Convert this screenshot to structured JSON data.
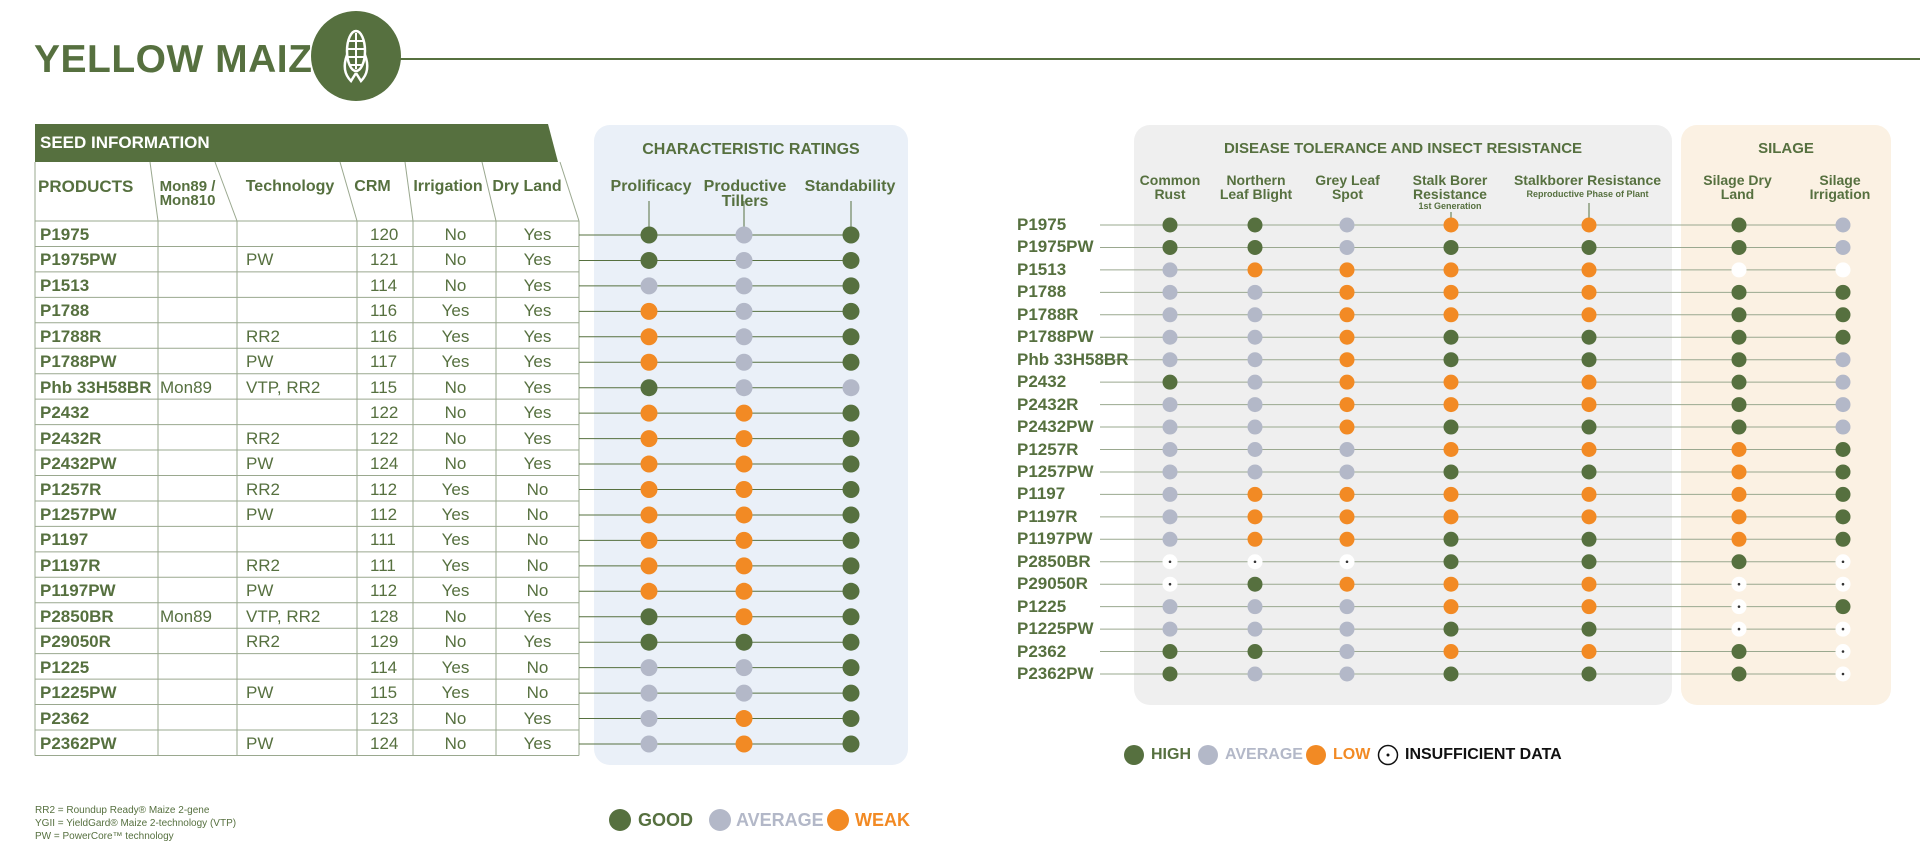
{
  "page": {
    "title": "YELLOW MAIZE",
    "logo_icon": "maize-cob-icon"
  },
  "colors": {
    "green": "#56703f",
    "grey": "#b3b8c8",
    "orange": "#f28a24",
    "char_panel": "#eaf0f8",
    "disease_panel": "#efefef",
    "silage_panel": "#fbf1e3"
  },
  "seed_info": {
    "banner": "SEED INFORMATION",
    "headers": {
      "products": "PRODUCTS",
      "mon_line1": "Mon89 /",
      "mon_line2": "Mon810",
      "technology": "Technology",
      "crm": "CRM",
      "irrigation": "Irrigation",
      "dry_land": "Dry Land"
    },
    "rows": [
      {
        "product": "P1975",
        "mon": "",
        "tech": "",
        "crm": "120",
        "irrigation": "No",
        "dry": "Yes"
      },
      {
        "product": "P1975PW",
        "mon": "",
        "tech": "PW",
        "crm": "121",
        "irrigation": "No",
        "dry": "Yes"
      },
      {
        "product": "P1513",
        "mon": "",
        "tech": "",
        "crm": "114",
        "irrigation": "No",
        "dry": "Yes"
      },
      {
        "product": "P1788",
        "mon": "",
        "tech": "",
        "crm": "116",
        "irrigation": "Yes",
        "dry": "Yes"
      },
      {
        "product": "P1788R",
        "mon": "",
        "tech": "RR2",
        "crm": "116",
        "irrigation": "Yes",
        "dry": "Yes"
      },
      {
        "product": "P1788PW",
        "mon": "",
        "tech": "PW",
        "crm": "117",
        "irrigation": "Yes",
        "dry": "Yes"
      },
      {
        "product": "Phb 33H58BR",
        "mon": "Mon89",
        "tech": "VTP, RR2",
        "crm": "115",
        "irrigation": "No",
        "dry": "Yes"
      },
      {
        "product": "P2432",
        "mon": "",
        "tech": "",
        "crm": "122",
        "irrigation": "No",
        "dry": "Yes"
      },
      {
        "product": "P2432R",
        "mon": "",
        "tech": "RR2",
        "crm": "122",
        "irrigation": "No",
        "dry": "Yes"
      },
      {
        "product": "P2432PW",
        "mon": "",
        "tech": "PW",
        "crm": "124",
        "irrigation": "No",
        "dry": "Yes"
      },
      {
        "product": "P1257R",
        "mon": "",
        "tech": "RR2",
        "crm": "112",
        "irrigation": "Yes",
        "dry": "No"
      },
      {
        "product": "P1257PW",
        "mon": "",
        "tech": "PW",
        "crm": "112",
        "irrigation": "Yes",
        "dry": "No"
      },
      {
        "product": "P1197",
        "mon": "",
        "tech": "",
        "crm": "111",
        "irrigation": "Yes",
        "dry": "No"
      },
      {
        "product": "P1197R",
        "mon": "",
        "tech": "RR2",
        "crm": "111",
        "irrigation": "Yes",
        "dry": "No"
      },
      {
        "product": "P1197PW",
        "mon": "",
        "tech": "PW",
        "crm": "112",
        "irrigation": "Yes",
        "dry": "No"
      },
      {
        "product": "P2850BR",
        "mon": "Mon89",
        "tech": "VTP, RR2",
        "crm": "128",
        "irrigation": "No",
        "dry": "Yes"
      },
      {
        "product": "P29050R",
        "mon": "",
        "tech": "RR2",
        "crm": "129",
        "irrigation": "No",
        "dry": "Yes"
      },
      {
        "product": "P1225",
        "mon": "",
        "tech": "",
        "crm": "114",
        "irrigation": "Yes",
        "dry": "No"
      },
      {
        "product": "P1225PW",
        "mon": "",
        "tech": "PW",
        "crm": "115",
        "irrigation": "Yes",
        "dry": "No"
      },
      {
        "product": "P2362",
        "mon": "",
        "tech": "",
        "crm": "123",
        "irrigation": "No",
        "dry": "Yes"
      },
      {
        "product": "P2362PW",
        "mon": "",
        "tech": "PW",
        "crm": "124",
        "irrigation": "No",
        "dry": "Yes"
      }
    ]
  },
  "char_ratings": {
    "title": "CHARACTERISTIC RATINGS",
    "headers": {
      "prolificacy": "Prolificacy",
      "tillers_line1": "Productive",
      "tillers_line2": "Tillers",
      "standability": "Standability"
    },
    "rows": [
      [
        "G",
        "A",
        "G"
      ],
      [
        "G",
        "A",
        "G"
      ],
      [
        "A",
        "A",
        "G"
      ],
      [
        "W",
        "A",
        "G"
      ],
      [
        "W",
        "A",
        "G"
      ],
      [
        "W",
        "A",
        "G"
      ],
      [
        "G",
        "A",
        "A"
      ],
      [
        "W",
        "W",
        "G"
      ],
      [
        "W",
        "W",
        "G"
      ],
      [
        "W",
        "W",
        "G"
      ],
      [
        "W",
        "W",
        "G"
      ],
      [
        "W",
        "W",
        "G"
      ],
      [
        "W",
        "W",
        "G"
      ],
      [
        "W",
        "W",
        "G"
      ],
      [
        "W",
        "W",
        "G"
      ],
      [
        "G",
        "W",
        "G"
      ],
      [
        "G",
        "G",
        "G"
      ],
      [
        "A",
        "A",
        "G"
      ],
      [
        "A",
        "A",
        "G"
      ],
      [
        "A",
        "W",
        "G"
      ],
      [
        "A",
        "W",
        "G"
      ]
    ],
    "legend": {
      "good": "GOOD",
      "average": "AVERAGE",
      "weak": "WEAK"
    }
  },
  "disease": {
    "title": "DISEASE TOLERANCE AND INSECT RESISTANCE",
    "headers": {
      "common_rust_1": "Common",
      "common_rust_2": "Rust",
      "nlb_1": "Northern",
      "nlb_2": "Leaf Blight",
      "gls_1": "Grey Leaf",
      "gls_2": "Spot",
      "sbr_1": "Stalk Borer",
      "sbr_2": "Resistance",
      "sbr_3": "1st Generation",
      "sbr2_1": "Stalkborer Resistance",
      "sbr2_2": "Reproductive Phase of Plant"
    },
    "silage_title": "SILAGE",
    "silage_headers": {
      "dry_1": "Silage Dry",
      "dry_2": "Land",
      "irr_1": "Silage",
      "irr_2": "Irrigation"
    },
    "rows": [
      {
        "product": "P1975",
        "r": [
          "H",
          "H",
          "A",
          "L",
          "L",
          "H",
          "A"
        ]
      },
      {
        "product": "P1975PW",
        "r": [
          "H",
          "H",
          "A",
          "H",
          "H",
          "H",
          "A"
        ]
      },
      {
        "product": "P1513",
        "r": [
          "A",
          "L",
          "L",
          "L",
          "L",
          "B",
          "B"
        ]
      },
      {
        "product": "P1788",
        "r": [
          "A",
          "A",
          "L",
          "L",
          "L",
          "H",
          "H"
        ]
      },
      {
        "product": "P1788R",
        "r": [
          "A",
          "A",
          "L",
          "L",
          "L",
          "H",
          "H"
        ]
      },
      {
        "product": "P1788PW",
        "r": [
          "A",
          "A",
          "L",
          "H",
          "H",
          "H",
          "H"
        ]
      },
      {
        "product": "Phb 33H58BR",
        "r": [
          "A",
          "A",
          "L",
          "H",
          "H",
          "H",
          "A"
        ]
      },
      {
        "product": "P2432",
        "r": [
          "H",
          "A",
          "L",
          "L",
          "L",
          "H",
          "A"
        ]
      },
      {
        "product": "P2432R",
        "r": [
          "A",
          "A",
          "L",
          "L",
          "L",
          "H",
          "A"
        ]
      },
      {
        "product": "P2432PW",
        "r": [
          "A",
          "A",
          "L",
          "H",
          "H",
          "H",
          "A"
        ]
      },
      {
        "product": "P1257R",
        "r": [
          "A",
          "A",
          "A",
          "L",
          "L",
          "L",
          "H"
        ]
      },
      {
        "product": "P1257PW",
        "r": [
          "A",
          "A",
          "A",
          "H",
          "H",
          "L",
          "H"
        ]
      },
      {
        "product": "P1197",
        "r": [
          "A",
          "L",
          "L",
          "L",
          "L",
          "L",
          "H"
        ]
      },
      {
        "product": "P1197R",
        "r": [
          "A",
          "L",
          "L",
          "L",
          "L",
          "L",
          "H"
        ]
      },
      {
        "product": "P1197PW",
        "r": [
          "A",
          "L",
          "L",
          "H",
          "H",
          "L",
          "H"
        ]
      },
      {
        "product": "P2850BR",
        "r": [
          "I",
          "I",
          "I",
          "H",
          "H",
          "H",
          "I"
        ]
      },
      {
        "product": "P29050R",
        "r": [
          "I",
          "H",
          "L",
          "L",
          "L",
          "I",
          "I"
        ]
      },
      {
        "product": "P1225",
        "r": [
          "A",
          "A",
          "A",
          "L",
          "L",
          "I",
          "H"
        ]
      },
      {
        "product": "P1225PW",
        "r": [
          "A",
          "A",
          "A",
          "H",
          "H",
          "I",
          "I"
        ]
      },
      {
        "product": "P2362",
        "r": [
          "H",
          "H",
          "A",
          "L",
          "L",
          "H",
          "I"
        ]
      },
      {
        "product": "P2362PW",
        "r": [
          "H",
          "A",
          "A",
          "H",
          "H",
          "H",
          "I"
        ]
      }
    ],
    "legend": {
      "high": "HIGH",
      "average": "AVERAGE",
      "low": "LOW",
      "insufficient": "INSUFFICIENT DATA"
    }
  },
  "notes": [
    "RR2 = Roundup Ready® Maize 2-gene",
    "YGII = YieldGard® Maize 2-technology (VTP)",
    "PW = PowerCore™ technology"
  ]
}
